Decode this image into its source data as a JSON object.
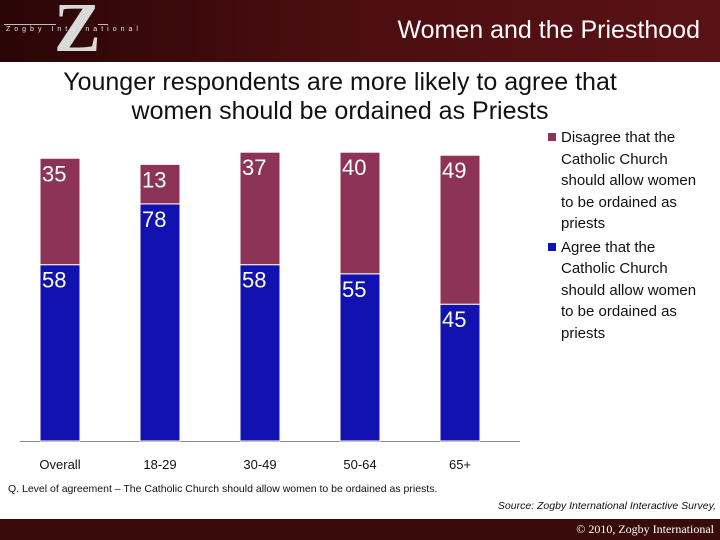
{
  "header": {
    "logo_letter": "Z",
    "logo_word": "Zogby International",
    "title": "Women and the Priesthood"
  },
  "subtitle": "Younger respondents are more likely to agree that women should be ordained as Priests",
  "legend": [
    {
      "label": "Disagree that the Catholic Church should allow women to be ordained as priests",
      "color": "#8e3358"
    },
    {
      "label": "Agree that the Catholic Church should allow women to be ordained as priests",
      "color": "#1212b0"
    }
  ],
  "chart_data": {
    "type": "bar",
    "stacked": true,
    "categories": [
      "Overall",
      "18-29",
      "30-49",
      "50-64",
      "65+"
    ],
    "series": [
      {
        "name": "Agree that the Catholic Church should allow women to be ordained as priests",
        "values": [
          58,
          78,
          58,
          55,
          45
        ],
        "labels": [
          "58",
          "78",
          "58",
          "55",
          "45"
        ],
        "color": "#1212b0"
      },
      {
        "name": "Disagree that the Catholic Church should allow women to be ordained as priests",
        "values": [
          35,
          13,
          37,
          40,
          49
        ],
        "labels": [
          "35",
          "13",
          "37",
          "40",
          "49"
        ],
        "color": "#8e3358"
      }
    ],
    "ylim": [
      0,
      100
    ],
    "grid": false,
    "legend_position": "right"
  },
  "note": "Q. Level of agreement – The Catholic Church should allow women to be ordained as priests.",
  "source": "Source: Zogby International Interactive Survey,",
  "footer": {
    "copyright": "© 2010, Zogby International"
  }
}
